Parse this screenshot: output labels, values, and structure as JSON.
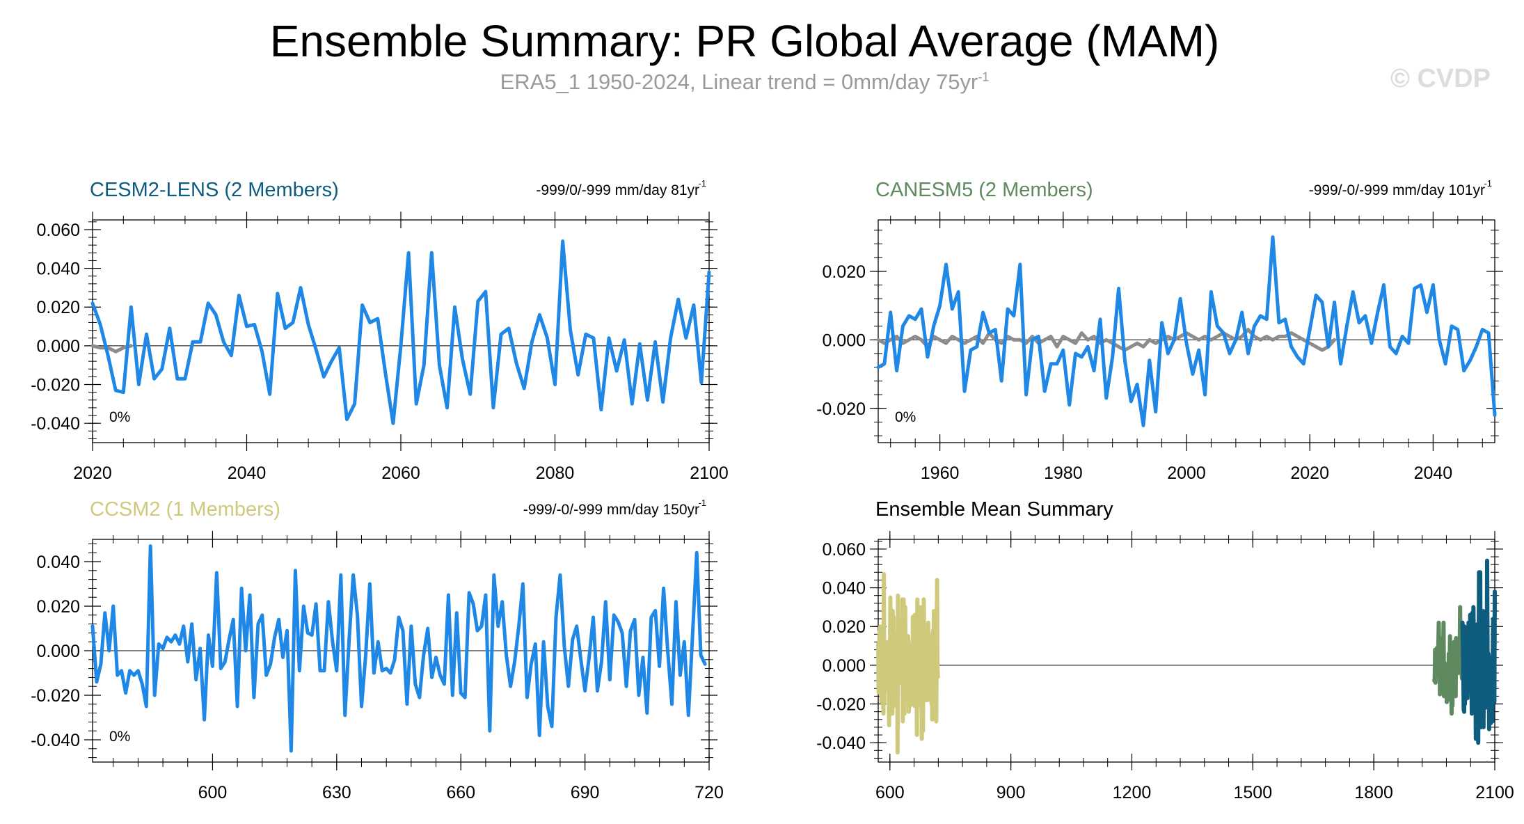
{
  "header": {
    "title": "Ensemble Summary: PR Global Average (MAM)",
    "subtitle_main": "ERA5_1 1950-2024, Linear trend = 0mm/day 75yr",
    "subtitle_sup": "-1",
    "watermark": "© CVDP"
  },
  "colors": {
    "model_line": "#1f88e6",
    "obs_line": "#8c8c8c",
    "cesm2_title": "#0e5c7e",
    "canesm5_title": "#5f8a5f",
    "ccsm2_title": "#cfc97c",
    "ensemble_title": "#000000"
  },
  "chart_data": [
    {
      "id": "cesm2",
      "type": "line",
      "title": "CESM2-LENS (2 Members)",
      "trend_main": "-999/0/-999 mm/day 81yr",
      "trend_sup": "-1",
      "pct_label": "0%",
      "xlim": [
        2020,
        2100
      ],
      "ylim": [
        -0.05,
        0.065
      ],
      "xticks": [
        2020,
        2040,
        2060,
        2080,
        2100
      ],
      "xtick_labels": [
        "2020",
        "2040",
        "2060",
        "2080",
        "2100"
      ],
      "yticks": [
        -0.04,
        -0.02,
        0.0,
        0.02,
        0.04,
        0.06
      ],
      "ytick_labels": [
        "-0.040",
        "-0.020",
        "0.000",
        "0.020",
        "0.040",
        "0.060"
      ],
      "series": [
        {
          "role": "model",
          "x0": 2020,
          "dx": 1,
          "values": [
            0.022,
            0.011,
            -0.005,
            -0.023,
            -0.024,
            0.02,
            -0.02,
            0.006,
            -0.017,
            -0.012,
            0.009,
            -0.017,
            -0.017,
            0.002,
            0.002,
            0.022,
            0.016,
            0.002,
            -0.005,
            0.026,
            0.01,
            0.011,
            -0.003,
            -0.025,
            0.027,
            0.009,
            0.012,
            0.03,
            0.011,
            -0.002,
            -0.016,
            -0.008,
            -0.001,
            -0.038,
            -0.03,
            0.021,
            0.012,
            0.014,
            -0.014,
            -0.04,
            0.0,
            0.048,
            -0.03,
            -0.01,
            0.048,
            -0.01,
            -0.032,
            0.02,
            -0.007,
            -0.025,
            0.023,
            0.028,
            -0.032,
            0.006,
            0.009,
            -0.009,
            -0.022,
            0.002,
            0.016,
            0.004,
            -0.02,
            0.054,
            0.008,
            -0.015,
            0.006,
            0.004,
            -0.033,
            0.004,
            -0.013,
            0.003,
            -0.03,
            0.001,
            -0.028,
            0.002,
            -0.029,
            0.004,
            0.024,
            0.004,
            0.021,
            -0.019,
            0.038
          ]
        },
        {
          "role": "obs",
          "x0": 2020,
          "dx": 1,
          "values": [
            0.0,
            -0.001,
            -0.001,
            -0.003,
            -0.001,
            0.0
          ]
        }
      ]
    },
    {
      "id": "canesm5",
      "type": "line",
      "title": "CANESM5 (2 Members)",
      "trend_main": "-999/-0/-999 mm/day 101yr",
      "trend_sup": "-1",
      "pct_label": "0%",
      "xlim": [
        1950,
        2050
      ],
      "ylim": [
        -0.03,
        0.035
      ],
      "xticks": [
        1960,
        1980,
        2000,
        2020,
        2040
      ],
      "xtick_labels": [
        "1960",
        "1980",
        "2000",
        "2020",
        "2040"
      ],
      "yticks": [
        -0.02,
        0.0,
        0.02
      ],
      "ytick_labels": [
        "-0.020",
        "0.000",
        "0.020"
      ],
      "series": [
        {
          "role": "model",
          "x0": 1950,
          "dx": 1,
          "values": [
            -0.008,
            -0.007,
            0.008,
            -0.009,
            0.004,
            0.007,
            0.006,
            0.009,
            -0.005,
            0.004,
            0.01,
            0.022,
            0.009,
            0.014,
            -0.015,
            -0.003,
            -0.002,
            0.008,
            0.002,
            0.003,
            -0.012,
            0.009,
            0.007,
            0.022,
            -0.016,
            0.0,
            0.001,
            -0.015,
            -0.007,
            -0.007,
            -0.003,
            -0.019,
            -0.004,
            -0.005,
            -0.002,
            -0.009,
            0.006,
            -0.017,
            -0.005,
            0.015,
            -0.006,
            -0.018,
            -0.013,
            -0.025,
            -0.006,
            -0.021,
            0.005,
            -0.004,
            0.0,
            0.012,
            -0.001,
            -0.01,
            -0.003,
            -0.016,
            0.014,
            0.004,
            0.002,
            -0.004,
            0.0,
            0.008,
            -0.004,
            0.004,
            0.007,
            0.006,
            0.03,
            0.005,
            0.006,
            -0.002,
            -0.005,
            -0.007,
            0.003,
            0.013,
            0.011,
            -0.002,
            0.011,
            -0.007,
            0.004,
            0.014,
            0.005,
            0.007,
            -0.001,
            0.008,
            0.016,
            -0.002,
            -0.004,
            0.001,
            -0.001,
            0.015,
            0.016,
            0.008,
            0.016,
            0.0,
            -0.007,
            0.004,
            0.003,
            -0.009,
            -0.006,
            -0.002,
            0.003,
            0.002,
            -0.022
          ]
        },
        {
          "role": "obs",
          "x0": 1950,
          "dx": 1,
          "values": [
            0.0,
            -0.001,
            0.0,
            0.001,
            -0.001,
            0.0,
            0.001,
            0.0,
            -0.002,
            0.001,
            0.0,
            -0.001,
            0.001,
            0.0,
            -0.001,
            0.0,
            0.001,
            -0.001,
            0.002,
            0.0,
            -0.001,
            0.001,
            0.0,
            0.0,
            -0.001,
            0.001,
            -0.001,
            0.0,
            0.001,
            -0.002,
            0.001,
            0.0,
            -0.001,
            0.002,
            0.0,
            0.001,
            -0.001,
            0.0,
            -0.001,
            -0.002,
            -0.003,
            -0.002,
            -0.001,
            -0.002,
            0.0,
            -0.001,
            0.0,
            0.001,
            0.0,
            0.001,
            0.002,
            0.001,
            0.0,
            0.001,
            0.0,
            0.001,
            0.002,
            0.001,
            0.0,
            0.001,
            0.003,
            0.001,
            0.0,
            0.001,
            0.0,
            0.001,
            0.001,
            0.002,
            0.001,
            0.0,
            -0.001,
            -0.002,
            -0.003,
            -0.002,
            0.0
          ]
        }
      ]
    },
    {
      "id": "ccsm2",
      "type": "line",
      "title": "CCSM2 (1 Members)",
      "trend_main": "-999/-0/-999 mm/day 150yr",
      "trend_sup": "-1",
      "pct_label": "0%",
      "xlim": [
        571,
        720
      ],
      "ylim": [
        -0.05,
        0.05
      ],
      "xticks": [
        600,
        630,
        660,
        690,
        720
      ],
      "xtick_labels": [
        "600",
        "630",
        "660",
        "690",
        "720"
      ],
      "yticks": [
        -0.04,
        -0.02,
        0.0,
        0.02,
        0.04
      ],
      "ytick_labels": [
        "-0.040",
        "-0.020",
        "0.000",
        "0.020",
        "0.040"
      ],
      "series": [
        {
          "role": "model",
          "x0": 571,
          "dx": 1,
          "values": [
            0.011,
            -0.014,
            -0.006,
            0.017,
            0.0,
            0.02,
            -0.011,
            -0.009,
            -0.019,
            -0.009,
            -0.011,
            -0.009,
            -0.015,
            -0.025,
            0.047,
            -0.02,
            0.003,
            0.001,
            0.006,
            0.004,
            0.007,
            0.003,
            0.011,
            -0.005,
            0.012,
            -0.013,
            0.001,
            -0.031,
            0.007,
            -0.007,
            0.035,
            -0.008,
            -0.005,
            0.005,
            0.014,
            -0.025,
            0.028,
            0.0,
            0.025,
            -0.021,
            0.012,
            0.016,
            -0.011,
            -0.006,
            0.006,
            0.014,
            -0.003,
            0.009,
            -0.045,
            0.036,
            -0.009,
            0.02,
            0.008,
            0.007,
            0.021,
            -0.009,
            -0.009,
            0.022,
            0.004,
            -0.009,
            0.034,
            -0.029,
            0.005,
            0.034,
            0.016,
            -0.025,
            -0.002,
            0.03,
            -0.01,
            0.004,
            -0.009,
            -0.008,
            -0.01,
            -0.004,
            0.015,
            0.009,
            -0.024,
            0.011,
            -0.015,
            -0.021,
            -0.002,
            0.01,
            -0.012,
            -0.003,
            -0.011,
            -0.015,
            0.025,
            -0.02,
            0.017,
            -0.019,
            -0.021,
            0.026,
            0.021,
            0.009,
            0.011,
            0.025,
            -0.036,
            0.034,
            0.011,
            0.022,
            -0.002,
            -0.016,
            -0.005,
            0.011,
            0.03,
            -0.021,
            -0.006,
            0.003,
            -0.038,
            0.004,
            -0.025,
            -0.034,
            0.015,
            0.034,
            0.002,
            -0.016,
            0.005,
            0.011,
            -0.004,
            -0.018,
            -0.003,
            0.015,
            -0.018,
            -0.005,
            0.022,
            -0.013,
            0.016,
            0.013,
            0.008,
            -0.016,
            0.009,
            0.014,
            -0.02,
            -0.003,
            -0.028,
            0.015,
            0.018,
            -0.007,
            0.028,
            0.0,
            -0.024,
            0.022,
            -0.011,
            0.004,
            -0.029,
            0.007,
            0.044,
            -0.002,
            -0.006
          ]
        }
      ]
    },
    {
      "id": "ensemble",
      "type": "line",
      "title": "Ensemble Mean Summary",
      "trend_main": "",
      "trend_sup": "",
      "pct_label": "",
      "xlim": [
        571,
        2100
      ],
      "ylim": [
        -0.05,
        0.065
      ],
      "xticks": [
        600,
        900,
        1200,
        1500,
        1800,
        2100
      ],
      "xtick_labels": [
        "600",
        "900",
        "1200",
        "1500",
        "1800",
        "2100"
      ],
      "yticks": [
        -0.04,
        -0.02,
        0.0,
        0.02,
        0.04,
        0.06
      ],
      "ytick_labels": [
        "-0.040",
        "-0.020",
        "0.000",
        "0.020",
        "0.040",
        "0.060"
      ],
      "series": [
        {
          "role": "ccsm2",
          "x0": 571,
          "dx": 1,
          "ref": "ccsm2"
        },
        {
          "role": "canesm5",
          "x0": 1950,
          "dx": 1,
          "ref": "canesm5"
        },
        {
          "role": "cesm2",
          "x0": 2020,
          "dx": 1,
          "ref": "cesm2"
        }
      ]
    }
  ]
}
